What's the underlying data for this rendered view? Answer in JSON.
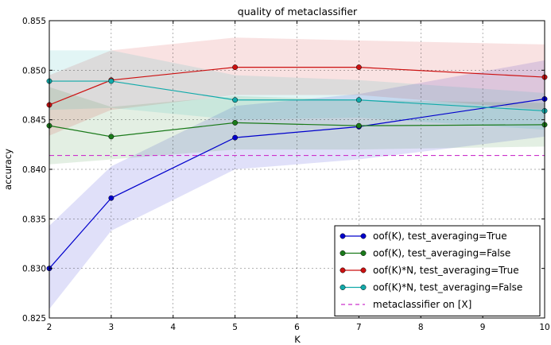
{
  "chart_data": {
    "type": "line",
    "title": "quality of metaclassifier",
    "xlabel": "K",
    "ylabel": "accuracy",
    "xlim": [
      2,
      10
    ],
    "ylim": [
      0.825,
      0.855
    ],
    "xticks": [
      "2",
      "3",
      "4",
      "5",
      "6",
      "7",
      "8",
      "9",
      "10"
    ],
    "yticks": [
      "0.825",
      "0.830",
      "0.835",
      "0.840",
      "0.845",
      "0.850",
      "0.855"
    ],
    "grid": true,
    "legend_position": "bottom-right",
    "x": [
      2,
      3,
      5,
      7,
      10
    ],
    "series": [
      {
        "name": "oof(K), test_averaging=True",
        "color": "#0000cc",
        "marker": "circle",
        "values": [
          0.83,
          0.8371,
          0.8432,
          0.8443,
          0.8471
        ],
        "band_lower": [
          0.8259,
          0.8338,
          0.84,
          0.841,
          0.8433
        ],
        "band_upper": [
          0.8343,
          0.8403,
          0.8464,
          0.8476,
          0.851
        ]
      },
      {
        "name": "oof(K), test_averaging=False",
        "color": "#1a7a1a",
        "marker": "circle",
        "values": [
          0.8444,
          0.8433,
          0.8447,
          0.8444,
          0.8445
        ],
        "band_lower": [
          0.8405,
          0.841,
          0.842,
          0.842,
          0.8423
        ],
        "band_upper": [
          0.8483,
          0.8463,
          0.8474,
          0.847,
          0.8467
        ]
      },
      {
        "name": "oof(K)*N, test_averaging=True",
        "color": "#cc1111",
        "marker": "circle",
        "values": [
          0.8465,
          0.849,
          0.8503,
          0.8503,
          0.8493
        ],
        "band_lower": [
          0.8434,
          0.846,
          0.8475,
          0.8475,
          0.846
        ],
        "band_upper": [
          0.8495,
          0.852,
          0.8533,
          0.853,
          0.8526
        ]
      },
      {
        "name": "oof(K)*N, test_averaging=False",
        "color": "#11aaaa",
        "marker": "circle",
        "values": [
          0.8489,
          0.8489,
          0.847,
          0.847,
          0.8459
        ],
        "band_lower": [
          0.846,
          0.8462,
          0.845,
          0.8452,
          0.844
        ],
        "band_upper": [
          0.852,
          0.852,
          0.8495,
          0.849,
          0.8477
        ]
      }
    ],
    "reference_line": {
      "name": "metaclassifier on [X]",
      "value": 0.8414,
      "color": "#cc33cc",
      "style": "dashed"
    }
  }
}
